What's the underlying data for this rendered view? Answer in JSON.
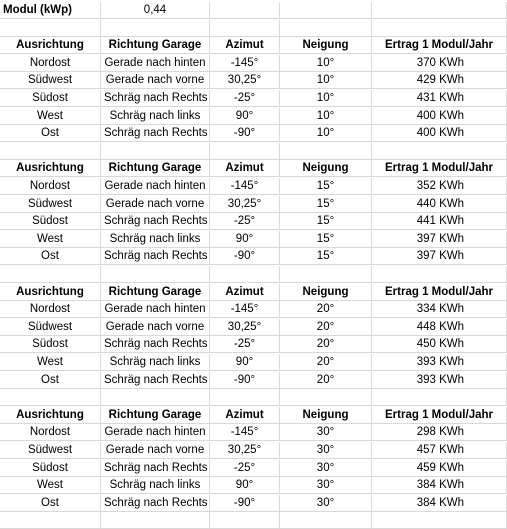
{
  "modul": {
    "label": "Modul (kWp)",
    "value": "0,44"
  },
  "headers": [
    "Ausrichtung",
    "Richtung Garage",
    "Azimut",
    "Neigung",
    "Ertrag 1 Modul/Jahr"
  ],
  "directions": [
    {
      "ausrichtung": "Nordost",
      "richtung": "Gerade nach hinten",
      "azimut": "-145°"
    },
    {
      "ausrichtung": "Südwest",
      "richtung": "Gerade nach vorne",
      "azimut": "30,25°"
    },
    {
      "ausrichtung": "Südost",
      "richtung": "Schräg nach Rechts",
      "azimut": "-25°"
    },
    {
      "ausrichtung": "West",
      "richtung": "Schräg nach links",
      "azimut": "90°"
    },
    {
      "ausrichtung": "Ost",
      "richtung": "Schräg nach Rechts",
      "azimut": "-90°"
    }
  ],
  "blocks": [
    {
      "neigung": "10°",
      "ertrag": [
        "370 KWh",
        "429 KWh",
        "431 KWh",
        "400 KWh",
        "400 KWh"
      ]
    },
    {
      "neigung": "15°",
      "ertrag": [
        "352 KWh",
        "440 KWh",
        "441 KWh",
        "397 KWh",
        "397 KWh"
      ]
    },
    {
      "neigung": "20°",
      "ertrag": [
        "334 KWh",
        "448 KWh",
        "450 KWh",
        "393 KWh",
        "393 KWh"
      ]
    },
    {
      "neigung": "30°",
      "ertrag": [
        "298 KWh",
        "457 KWh",
        "459 KWh",
        "384 KWh",
        "384 KWh"
      ]
    }
  ]
}
